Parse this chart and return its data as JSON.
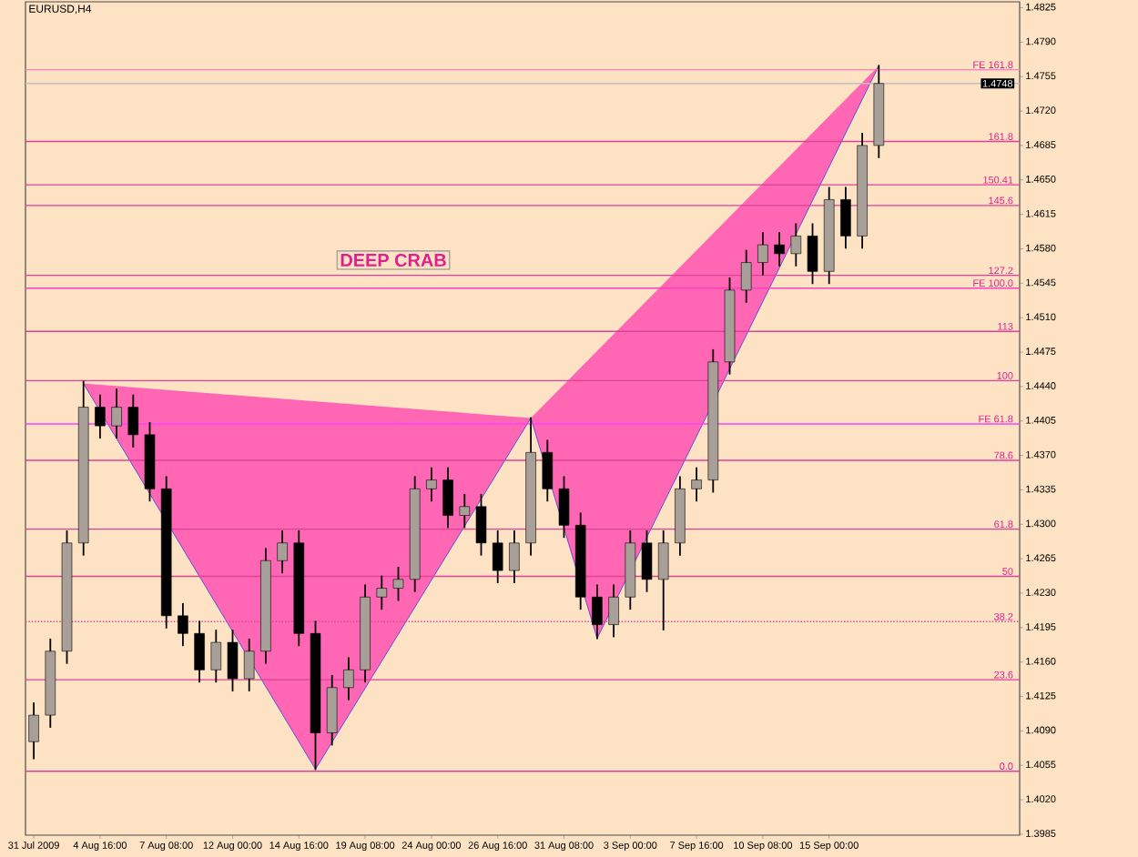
{
  "chart_data": {
    "type": "candlestick",
    "title": "EURUSD,H4",
    "categories": [
      "31 Jul 2009",
      null,
      null,
      null,
      "4 Aug 16:00",
      null,
      null,
      null,
      "7 Aug 08:00",
      null,
      null,
      null,
      "12 Aug 00:00",
      null,
      null,
      null,
      "14 Aug 16:00",
      null,
      null,
      null,
      "19 Aug 08:00",
      null,
      null,
      null,
      "24 Aug 00:00",
      null,
      null,
      null,
      "26 Aug 16:00",
      null,
      null,
      null,
      "31 Aug 08:00",
      null,
      null,
      null,
      "3 Sep 00:00",
      null,
      null,
      null,
      "7 Sep 16:00",
      null,
      null,
      null,
      "10 Sep 08:00",
      null,
      null,
      null,
      "15 Sep 00:00",
      null,
      null,
      null,
      null,
      null,
      null,
      null,
      null,
      null,
      null,
      null
    ],
    "ohlc": [
      [
        1.4079,
        1.4118,
        1.4062,
        1.4106
      ],
      [
        1.4106,
        1.4183,
        1.4094,
        1.4171
      ],
      [
        1.4171,
        1.4293,
        1.4159,
        1.4281
      ],
      [
        1.4281,
        1.4445,
        1.4269,
        1.4419
      ],
      [
        1.4419,
        1.4431,
        1.4388,
        1.44
      ],
      [
        1.44,
        1.4437,
        1.4388,
        1.4419
      ],
      [
        1.4419,
        1.4431,
        1.4379,
        1.4391
      ],
      [
        1.4391,
        1.4403,
        1.4324,
        1.4336
      ],
      [
        1.4336,
        1.4348,
        1.4195,
        1.4207
      ],
      [
        1.4207,
        1.4219,
        1.4177,
        1.4189
      ],
      [
        1.4189,
        1.4201,
        1.414,
        1.4152
      ],
      [
        1.4152,
        1.4192,
        1.414,
        1.418
      ],
      [
        1.418,
        1.4192,
        1.4131,
        1.4143
      ],
      [
        1.4143,
        1.4183,
        1.4131,
        1.4171
      ],
      [
        1.4171,
        1.4275,
        1.4159,
        1.4263
      ],
      [
        1.4263,
        1.4293,
        1.4251,
        1.4281
      ],
      [
        1.4281,
        1.4293,
        1.4177,
        1.4189
      ],
      [
        1.4189,
        1.4201,
        1.4051,
        1.4088
      ],
      [
        1.4088,
        1.4146,
        1.4076,
        1.4134
      ],
      [
        1.4134,
        1.4164,
        1.4122,
        1.4152
      ],
      [
        1.4152,
        1.4238,
        1.414,
        1.4226
      ],
      [
        1.4226,
        1.4247,
        1.4214,
        1.4235
      ],
      [
        1.4235,
        1.4256,
        1.4223,
        1.4244
      ],
      [
        1.4244,
        1.4348,
        1.4232,
        1.4336
      ],
      [
        1.4336,
        1.4357,
        1.4324,
        1.4345
      ],
      [
        1.4345,
        1.4357,
        1.4297,
        1.4309
      ],
      [
        1.4309,
        1.433,
        1.4297,
        1.4318
      ],
      [
        1.4318,
        1.433,
        1.4269,
        1.4281
      ],
      [
        1.4281,
        1.4293,
        1.4241,
        1.4253
      ],
      [
        1.4253,
        1.4293,
        1.4241,
        1.4281
      ],
      [
        1.4281,
        1.4408,
        1.4269,
        1.4373
      ],
      [
        1.4373,
        1.4385,
        1.4324,
        1.4336
      ],
      [
        1.4336,
        1.4348,
        1.4287,
        1.4299
      ],
      [
        1.4299,
        1.4311,
        1.4214,
        1.4226
      ],
      [
        1.4226,
        1.4238,
        1.4184,
        1.4198
      ],
      [
        1.4198,
        1.4238,
        1.4186,
        1.4226
      ],
      [
        1.4226,
        1.4293,
        1.4214,
        1.4281
      ],
      [
        1.4281,
        1.4293,
        1.4232,
        1.4244
      ],
      [
        1.4244,
        1.4293,
        1.4193,
        1.4281
      ],
      [
        1.4281,
        1.4348,
        1.4269,
        1.4336
      ],
      [
        1.4336,
        1.4357,
        1.4324,
        1.4345
      ],
      [
        1.4345,
        1.4477,
        1.4333,
        1.4465
      ],
      [
        1.4465,
        1.455,
        1.4453,
        1.4538
      ],
      [
        1.4538,
        1.4578,
        1.4526,
        1.4566
      ],
      [
        1.4566,
        1.4596,
        1.4554,
        1.4584
      ],
      [
        1.4584,
        1.4596,
        1.4563,
        1.4575
      ],
      [
        1.4575,
        1.4605,
        1.4563,
        1.4593
      ],
      [
        1.4593,
        1.4605,
        1.4545,
        1.4557
      ],
      [
        1.4557,
        1.4642,
        1.4545,
        1.463
      ],
      [
        1.463,
        1.4642,
        1.4581,
        1.4593
      ],
      [
        1.4593,
        1.4697,
        1.4581,
        1.4685
      ],
      [
        1.4685,
        1.4766,
        1.4673,
        1.4748
      ],
      null,
      null,
      null,
      null,
      null,
      null,
      null,
      null
    ],
    "series": [
      {
        "type": "line",
        "color": "#3c3cdc",
        "values": [
          null,
          null,
          null,
          1.4443,
          null,
          null,
          null,
          null,
          null,
          null,
          null,
          null,
          null,
          null,
          null,
          null,
          null,
          1.4051,
          null,
          null,
          null,
          null,
          null,
          null,
          null,
          null,
          null,
          null,
          null,
          null,
          1.4408,
          null,
          null,
          null,
          1.4184,
          null,
          null,
          null,
          null,
          null,
          null,
          null,
          null,
          null,
          null,
          null,
          null,
          null,
          null,
          null,
          null,
          1.4766,
          null,
          null,
          null,
          null,
          null,
          null,
          null,
          null
        ]
      }
    ],
    "ylim": [
      1.3984,
      1.4831
    ],
    "yticks": [
      {
        "value": 1.3985,
        "label": "1.3985"
      },
      {
        "value": 1.402,
        "label": "1.4020"
      },
      {
        "value": 1.4055,
        "label": "1.4055"
      },
      {
        "value": 1.409,
        "label": "1.4090"
      },
      {
        "value": 1.4125,
        "label": "1.4125"
      },
      {
        "value": 1.416,
        "label": "1.4160"
      },
      {
        "value": 1.4195,
        "label": "1.4195"
      },
      {
        "value": 1.423,
        "label": "1.4230"
      },
      {
        "value": 1.4265,
        "label": "1.4265"
      },
      {
        "value": 1.43,
        "label": "1.4300"
      },
      {
        "value": 1.4335,
        "label": "1.4335"
      },
      {
        "value": 1.437,
        "label": "1.4370"
      },
      {
        "value": 1.4405,
        "label": "1.4405"
      },
      {
        "value": 1.444,
        "label": "1.4440"
      },
      {
        "value": 1.4475,
        "label": "1.4475"
      },
      {
        "value": 1.451,
        "label": "1.4510"
      },
      {
        "value": 1.4545,
        "label": "1.4545"
      },
      {
        "value": 1.458,
        "label": "1.4580"
      },
      {
        "value": 1.4615,
        "label": "1.4615"
      },
      {
        "value": 1.465,
        "label": "1.4650"
      },
      {
        "value": 1.4685,
        "label": "1.4685"
      },
      {
        "value": 1.472,
        "label": "1.4720"
      },
      {
        "value": 1.4755,
        "label": "1.4755"
      },
      {
        "value": 1.479,
        "label": "1.4790"
      },
      {
        "value": 1.4825,
        "label": "1.4825"
      }
    ],
    "ref_lines": [
      {
        "axis": "y",
        "value": 1.4762,
        "color": "#ff80c0"
      },
      {
        "axis": "y",
        "value": 1.4748,
        "label": "1.4748",
        "color": "#c0c0c0"
      },
      {
        "axis": "y",
        "value": 1.4689,
        "color": "#e0409a"
      },
      {
        "axis": "y",
        "value": 1.4645,
        "color": "#e0409a"
      },
      {
        "axis": "y",
        "value": 1.4624,
        "color": "#e0409a"
      },
      {
        "axis": "y",
        "value": 1.4553,
        "color": "#e0409a"
      },
      {
        "axis": "y",
        "value": 1.454,
        "color": "#ff40c0"
      },
      {
        "axis": "y",
        "value": 1.4496,
        "color": "#e0409a"
      },
      {
        "axis": "y",
        "value": 1.4446,
        "color": "#e0409a"
      },
      {
        "axis": "y",
        "value": 1.4402,
        "color": "#ff40ff"
      },
      {
        "axis": "y",
        "value": 1.4365,
        "color": "#e0409a"
      },
      {
        "axis": "y",
        "value": 1.4295,
        "color": "#e0409a"
      },
      {
        "axis": "y",
        "value": 1.4247,
        "color": "#e0409a"
      },
      {
        "axis": "y",
        "value": 1.4201,
        "color": "#e0409a",
        "line_style": "dotted"
      },
      {
        "axis": "y",
        "value": 1.4142,
        "color": "#e0409a"
      },
      {
        "axis": "y",
        "value": 1.4049,
        "color": "#e0409a"
      }
    ],
    "annotations": [
      "DEEP CRAB",
      {
        "text": "FE 161.8",
        "y": 1.4762
      },
      {
        "text": "161.8",
        "y": 1.4689
      },
      {
        "text": "150.41",
        "y": 1.4645
      },
      {
        "text": "145.6",
        "y": 1.4624
      },
      {
        "text": "127.2",
        "y": 1.4553
      },
      {
        "text": "FE 100.0",
        "y": 1.454
      },
      {
        "text": "113",
        "y": 1.4496
      },
      {
        "text": "100",
        "y": 1.4446
      },
      {
        "text": "FE 61.8",
        "y": 1.4402
      },
      {
        "text": "78.6",
        "y": 1.4365
      },
      {
        "text": "61.8",
        "y": 1.4295
      },
      {
        "text": "50",
        "y": 1.4247
      },
      {
        "text": "38.2",
        "y": 1.4201
      },
      {
        "text": "23.6",
        "y": 1.4142
      },
      {
        "text": "0.0",
        "y": 1.4049
      }
    ]
  }
}
